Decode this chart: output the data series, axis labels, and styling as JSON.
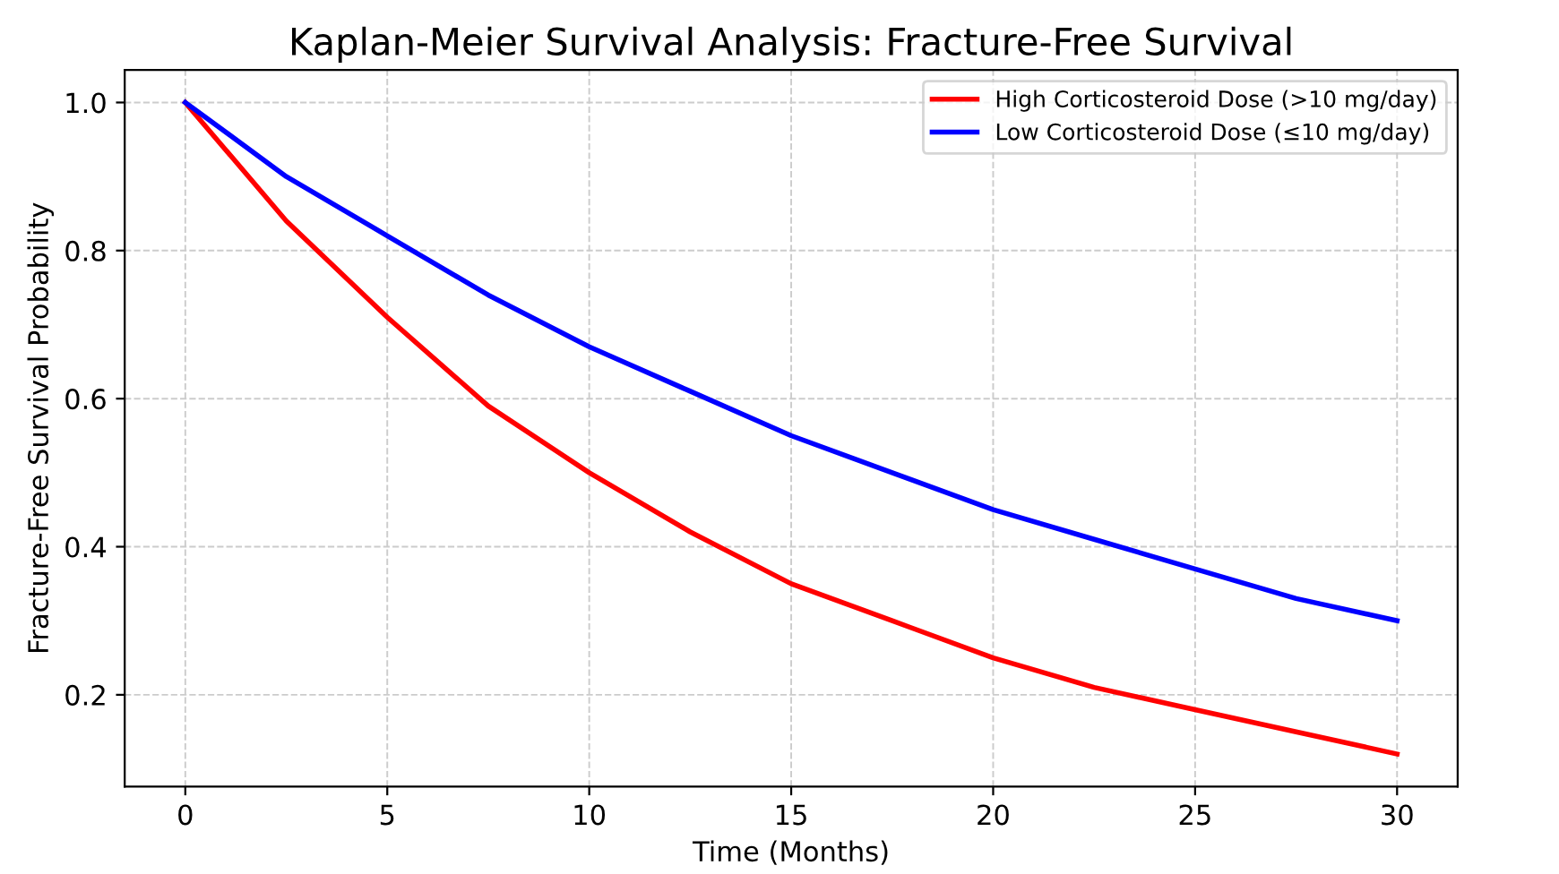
{
  "chart_data": {
    "type": "line",
    "title": "Kaplan-Meier Survival Analysis: Fracture-Free Survival",
    "xlabel": "Time (Months)",
    "ylabel": "Fracture-Free Survival Probability",
    "x": [
      0,
      2.5,
      5,
      7.5,
      10,
      12.5,
      15,
      17.5,
      20,
      22.5,
      25,
      27.5,
      30
    ],
    "series": [
      {
        "name": "High Corticosteroid Dose (>10 mg/day)",
        "color": "#ff0000",
        "values": [
          1.0,
          0.84,
          0.71,
          0.59,
          0.5,
          0.42,
          0.35,
          0.3,
          0.25,
          0.21,
          0.18,
          0.15,
          0.12
        ]
      },
      {
        "name": "Low Corticosteroid Dose (≤10 mg/day)",
        "color": "#0000ff",
        "values": [
          1.0,
          0.9,
          0.82,
          0.74,
          0.67,
          0.61,
          0.55,
          0.5,
          0.45,
          0.41,
          0.37,
          0.33,
          0.3
        ]
      }
    ],
    "xlim": [
      -1.5,
      31.5
    ],
    "xticks": [
      0,
      5,
      10,
      15,
      20,
      25,
      30
    ],
    "ylim": [
      0.076,
      1.044
    ],
    "yticks": [
      {
        "value": 0.2,
        "label": "0.2"
      },
      {
        "value": 0.4,
        "label": "0.4"
      },
      {
        "value": 0.6,
        "label": "0.6"
      },
      {
        "value": 0.8,
        "label": "0.8"
      },
      {
        "value": 1.0,
        "label": "1.0"
      }
    ],
    "grid": true,
    "legend": "top right",
    "line_style": "solid",
    "marker": "none"
  }
}
